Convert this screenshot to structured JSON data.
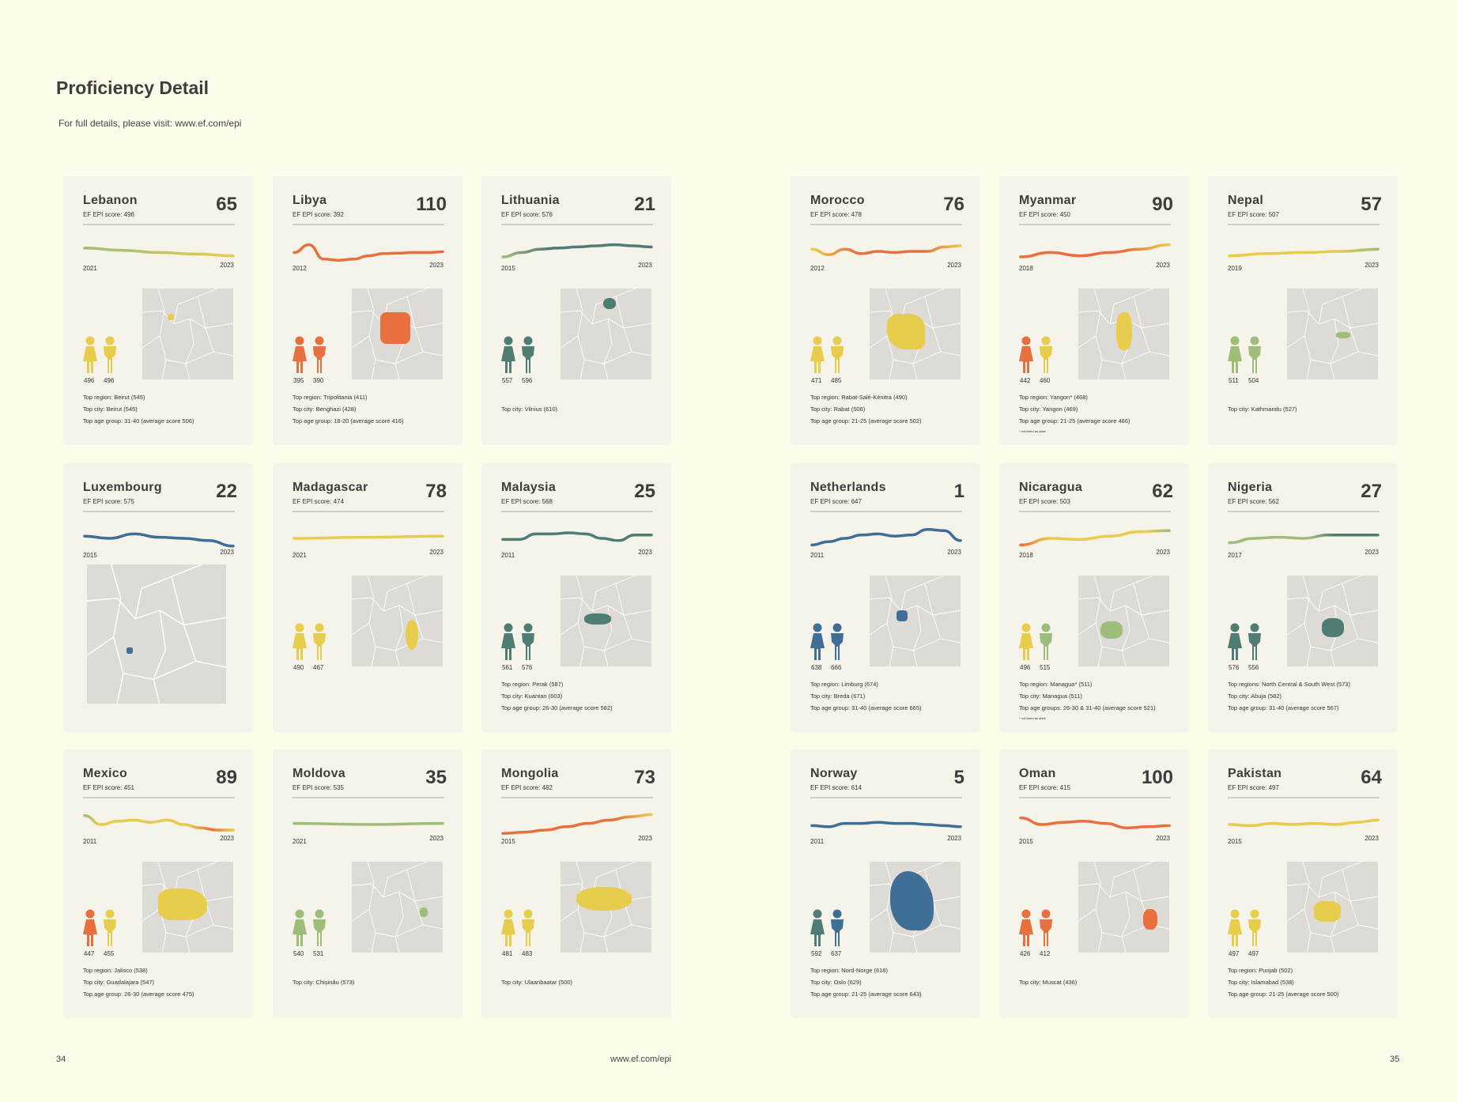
{
  "page": {
    "title": "Proficiency Detail",
    "subtitle": "For full details, please visit: www.ef.com/epi",
    "footer_left": "34",
    "footer_center": "www.ef.com/epi",
    "footer_right": "35"
  },
  "colors": {
    "very_high": "#3f6e97",
    "high": "#4f7d73",
    "moderate": "#9ebd79",
    "low": "#e8cc4c",
    "very_low": "#e8703e",
    "map_land": "#dedbd6",
    "card_bg": "#f5f3ea",
    "page_bg": "#fdfcea"
  },
  "cards": [
    {
      "name": "Lebanon",
      "rank": "65",
      "score": "EF EPI score: 496",
      "start": "2021",
      "end": "2023",
      "female": "496",
      "male": "496",
      "fcolor": "#e8cc4c",
      "mcolor": "#e8cc4c",
      "trend": [
        [
          0,
          "#9ebd79"
        ],
        [
          1,
          "#e8cc4c"
        ]
      ],
      "trend_levels": [
        0.35,
        0.45,
        0.55,
        0.62,
        0.7
      ],
      "info": [
        "Top region: Beirut (545)",
        "Top city: Beirut (545)",
        "Top age group: 31-40 (average score 506)"
      ],
      "note": ""
    },
    {
      "name": "Libya",
      "rank": "110",
      "score": "EF EPI score: 392",
      "start": "2012",
      "end": "2023",
      "female": "395",
      "male": "390",
      "fcolor": "#e8703e",
      "mcolor": "#e8703e",
      "trend": [
        [
          0,
          "#e8703e"
        ],
        [
          1,
          "#e8703e"
        ]
      ],
      "trend_levels": [
        0.55,
        0.2,
        0.85,
        0.9,
        0.85,
        0.7,
        0.6,
        0.58,
        0.55,
        0.55,
        0.52
      ],
      "info": [
        "Top region: Tripolitania (411)",
        "Top city: Benghazi (428)",
        "Top age group: 18-20 (average score 416)"
      ],
      "note": ""
    },
    {
      "name": "Lithuania",
      "rank": "21",
      "score": "EF EPI score: 576",
      "start": "2015",
      "end": "2023",
      "female": "557",
      "male": "596",
      "fcolor": "#4f7d73",
      "mcolor": "#4f7d73",
      "trend": [
        [
          0,
          "#9ebd79"
        ],
        [
          0.3,
          "#4f7d73"
        ],
        [
          1,
          "#4f7d73"
        ]
      ],
      "trend_levels": [
        0.75,
        0.55,
        0.4,
        0.35,
        0.3,
        0.25,
        0.2,
        0.25,
        0.3
      ],
      "info": [
        "Top city: Vilnius (610)"
      ],
      "note": ""
    },
    {
      "name": "Morocco",
      "rank": "76",
      "score": "EF EPI score: 478",
      "start": "2012",
      "end": "2023",
      "female": "471",
      "male": "485",
      "fcolor": "#e8cc4c",
      "mcolor": "#e8cc4c",
      "trend": [
        [
          0,
          "#e8cc4c"
        ],
        [
          0.3,
          "#e8703e"
        ],
        [
          0.75,
          "#e8703e"
        ],
        [
          1,
          "#e8cc4c"
        ]
      ],
      "trend_levels": [
        0.4,
        0.65,
        0.4,
        0.6,
        0.5,
        0.55,
        0.5,
        0.5,
        0.3,
        0.25
      ],
      "info": [
        "Top region: Rabat-Salé-Kénitra (490)",
        "Top city: Rabat (506)",
        "Top age group: 21-25 (average score 502)"
      ],
      "note": ""
    },
    {
      "name": "Myanmar",
      "rank": "90",
      "score": "EF EPI score: 450",
      "start": "2018",
      "end": "2023",
      "female": "442",
      "male": "460",
      "fcolor": "#e8703e",
      "mcolor": "#e8cc4c",
      "trend": [
        [
          0,
          "#e8703e"
        ],
        [
          0.7,
          "#e8703e"
        ],
        [
          1,
          "#e8cc4c"
        ]
      ],
      "trend_levels": [
        0.75,
        0.55,
        0.7,
        0.55,
        0.4,
        0.2
      ],
      "info": [
        "Top region: Yangon* (468)",
        "Top city: Yangon (469)",
        "Top age group: 21-25 (average score 466)"
      ],
      "note": "* not listed as state"
    },
    {
      "name": "Nepal",
      "rank": "57",
      "score": "EF EPI score: 507",
      "start": "2019",
      "end": "2023",
      "female": "511",
      "male": "504",
      "fcolor": "#9ebd79",
      "mcolor": "#9ebd79",
      "trend": [
        [
          0,
          "#e8cc4c"
        ],
        [
          0.7,
          "#e8cc4c"
        ],
        [
          1,
          "#9ebd79"
        ]
      ],
      "trend_levels": [
        0.7,
        0.6,
        0.55,
        0.5,
        0.4
      ],
      "info": [
        "Top city: Kathmandu (527)"
      ],
      "note": ""
    },
    {
      "name": "Luxembourg",
      "rank": "22",
      "score": "EF EPI score: 575",
      "start": "2015",
      "end": "2023",
      "female": "",
      "male": "",
      "fcolor": "",
      "mcolor": "",
      "trend": [
        [
          0,
          "#3f6e97"
        ],
        [
          1,
          "#3f6e97"
        ]
      ],
      "trend_levels": [
        0.4,
        0.5,
        0.3,
        0.45,
        0.5,
        0.6,
        0.85
      ],
      "info": [],
      "note": ""
    },
    {
      "name": "Madagascar",
      "rank": "78",
      "score": "EF EPI score: 474",
      "start": "2021",
      "end": "2023",
      "female": "490",
      "male": "467",
      "fcolor": "#e8cc4c",
      "mcolor": "#e8cc4c",
      "trend": [
        [
          0,
          "#e8cc4c"
        ],
        [
          1,
          "#e8cc4c"
        ]
      ],
      "trend_levels": [
        0.5,
        0.45,
        0.4
      ],
      "info": [],
      "note": ""
    },
    {
      "name": "Malaysia",
      "rank": "25",
      "score": "EF EPI score: 568",
      "start": "2011",
      "end": "2023",
      "female": "561",
      "male": "576",
      "fcolor": "#4f7d73",
      "mcolor": "#4f7d73",
      "trend": [
        [
          0,
          "#4f7d73"
        ],
        [
          1,
          "#4f7d73"
        ]
      ],
      "trend_levels": [
        0.55,
        0.55,
        0.3,
        0.3,
        0.25,
        0.3,
        0.5,
        0.6,
        0.35,
        0.35
      ],
      "info": [
        "Top region: Perak (587)",
        "Top city: Kuantan (603)",
        "Top age group: 26-30 (average score 582)"
      ],
      "note": ""
    },
    {
      "name": "Netherlands",
      "rank": "1",
      "score": "EF EPI score: 647",
      "start": "2011",
      "end": "2023",
      "female": "638",
      "male": "666",
      "fcolor": "#3f6e97",
      "mcolor": "#3f6e97",
      "trend": [
        [
          0,
          "#3f6e97"
        ],
        [
          1,
          "#3f6e97"
        ]
      ],
      "trend_levels": [
        0.8,
        0.65,
        0.5,
        0.35,
        0.3,
        0.4,
        0.35,
        0.1,
        0.15,
        0.6
      ],
      "info": [
        "Top region: Limburg (674)",
        "Top city: Breda (671)",
        "Top age group: 31-40 (average score 665)"
      ],
      "note": ""
    },
    {
      "name": "Nicaragua",
      "rank": "62",
      "score": "EF EPI score: 503",
      "start": "2018",
      "end": "2023",
      "female": "496",
      "male": "515",
      "fcolor": "#e8cc4c",
      "mcolor": "#9ebd79",
      "trend": [
        [
          0,
          "#e8703e"
        ],
        [
          0.2,
          "#e8cc4c"
        ],
        [
          0.85,
          "#e8cc4c"
        ],
        [
          1,
          "#9ebd79"
        ]
      ],
      "trend_levels": [
        0.8,
        0.5,
        0.55,
        0.4,
        0.2,
        0.15
      ],
      "info": [
        "Top region: Managua* (511)",
        "Top city: Managua (511)",
        "Top age groups: 26-30 & 31-40 (average score 521)"
      ],
      "note": "* not listed as state"
    },
    {
      "name": "Nigeria",
      "rank": "27",
      "score": "EF EPI score: 562",
      "start": "2017",
      "end": "2023",
      "female": "576",
      "male": "556",
      "fcolor": "#4f7d73",
      "mcolor": "#4f7d73",
      "trend": [
        [
          0,
          "#9ebd79"
        ],
        [
          0.55,
          "#9ebd79"
        ],
        [
          0.7,
          "#4f7d73"
        ],
        [
          1,
          "#4f7d73"
        ]
      ],
      "trend_levels": [
        0.7,
        0.5,
        0.45,
        0.5,
        0.35,
        0.35,
        0.35
      ],
      "info": [
        "Top regions: North Central & South West (573)",
        "Top city: Abuja (582)",
        "Top age group: 31-40 (average score 567)"
      ],
      "note": ""
    },
    {
      "name": "Mexico",
      "rank": "89",
      "score": "EF EPI score: 451",
      "start": "2011",
      "end": "2023",
      "female": "447",
      "male": "455",
      "fcolor": "#e8703e",
      "mcolor": "#e8cc4c",
      "trend": [
        [
          0,
          "#9ebd79"
        ],
        [
          0.1,
          "#e8cc4c"
        ],
        [
          0.7,
          "#e8cc4c"
        ],
        [
          0.85,
          "#e8703e"
        ],
        [
          1,
          "#e8cc4c"
        ]
      ],
      "trend_levels": [
        0.1,
        0.5,
        0.35,
        0.3,
        0.4,
        0.3,
        0.5,
        0.65,
        0.75,
        0.75
      ],
      "info": [
        "Top region: Jalisco (538)",
        "Top city: Guadalajara (547)",
        "Top age group: 26-30 (average score 475)"
      ],
      "note": ""
    },
    {
      "name": "Moldova",
      "rank": "35",
      "score": "EF EPI score: 535",
      "start": "2021",
      "end": "2023",
      "female": "540",
      "male": "531",
      "fcolor": "#9ebd79",
      "mcolor": "#9ebd79",
      "trend": [
        [
          0,
          "#9ebd79"
        ],
        [
          1,
          "#9ebd79"
        ]
      ],
      "trend_levels": [
        0.45,
        0.5,
        0.45
      ],
      "info": [
        "Top city: Chișinău (573)"
      ],
      "note": ""
    },
    {
      "name": "Mongolia",
      "rank": "73",
      "score": "EF EPI score: 482",
      "start": "2015",
      "end": "2023",
      "female": "481",
      "male": "483",
      "fcolor": "#e8cc4c",
      "mcolor": "#e8cc4c",
      "trend": [
        [
          0,
          "#e8703e"
        ],
        [
          0.75,
          "#e8703e"
        ],
        [
          1,
          "#e8cc4c"
        ]
      ],
      "trend_levels": [
        0.9,
        0.85,
        0.75,
        0.6,
        0.45,
        0.3,
        0.15,
        0.05
      ],
      "info": [
        "Top city: Ulaanbaatar (500)"
      ],
      "note": ""
    },
    {
      "name": "Norway",
      "rank": "5",
      "score": "EF EPI score: 614",
      "start": "2011",
      "end": "2023",
      "female": "592",
      "male": "637",
      "fcolor": "#4f7d73",
      "mcolor": "#3f6e97",
      "trend": [
        [
          0,
          "#3f6e97"
        ],
        [
          1,
          "#3f6e97"
        ]
      ],
      "trend_levels": [
        0.55,
        0.6,
        0.45,
        0.45,
        0.4,
        0.45,
        0.45,
        0.5,
        0.55,
        0.6
      ],
      "info": [
        "Top region: Nord-Norge (618)",
        "Top city: Oslo (629)",
        "Top age group: 21-25 (average score 643)"
      ],
      "note": ""
    },
    {
      "name": "Oman",
      "rank": "100",
      "score": "EF EPI score: 415",
      "start": "2015",
      "end": "2023",
      "female": "426",
      "male": "412",
      "fcolor": "#e8703e",
      "mcolor": "#e8703e",
      "trend": [
        [
          0,
          "#e8703e"
        ],
        [
          1,
          "#e8703e"
        ]
      ],
      "trend_levels": [
        0.2,
        0.5,
        0.4,
        0.35,
        0.45,
        0.65,
        0.6,
        0.55
      ],
      "info": [
        "Top city: Muscat (436)"
      ],
      "note": ""
    },
    {
      "name": "Pakistan",
      "rank": "64",
      "score": "EF EPI score: 497",
      "start": "2015",
      "end": "2023",
      "female": "497",
      "male": "497",
      "fcolor": "#e8cc4c",
      "mcolor": "#e8cc4c",
      "trend": [
        [
          0,
          "#e8cc4c"
        ],
        [
          1,
          "#e8cc4c"
        ]
      ],
      "trend_levels": [
        0.5,
        0.55,
        0.45,
        0.5,
        0.45,
        0.5,
        0.4,
        0.3
      ],
      "info": [
        "Top region: Punjab (502)",
        "Top city: Islamabad (538)",
        "Top age group: 21-25 (average score 500)"
      ],
      "note": ""
    }
  ]
}
